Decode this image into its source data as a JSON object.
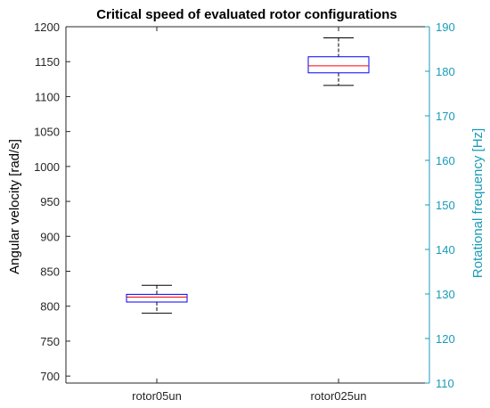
{
  "chart_data": {
    "type": "box",
    "title": "Critical speed of evaluated rotor configurations",
    "ylabel": "Angular velocity [rad/s]",
    "ylabel_right": "Rotational frequency [Hz]",
    "categories": [
      "rotor05un",
      "rotor025un"
    ],
    "ylim": [
      690,
      1200
    ],
    "ylim_right": [
      110,
      190
    ],
    "yticks": [
      700,
      750,
      800,
      850,
      900,
      950,
      1000,
      1050,
      1100,
      1150,
      1200
    ],
    "yticks_right": [
      110,
      120,
      130,
      140,
      150,
      160,
      170,
      180,
      190
    ],
    "boxes": [
      {
        "category": "rotor05un",
        "min": 790,
        "q1": 806,
        "median": 813,
        "q3": 817,
        "max": 830
      },
      {
        "category": "rotor025un",
        "min": 1116,
        "q1": 1134,
        "median": 1144,
        "q3": 1157,
        "max": 1184
      }
    ],
    "colors": {
      "box": "#0000ff",
      "median": "#ff0000",
      "whisker": "#000000",
      "right_axis": "#1a9bb8"
    },
    "grid": false
  }
}
